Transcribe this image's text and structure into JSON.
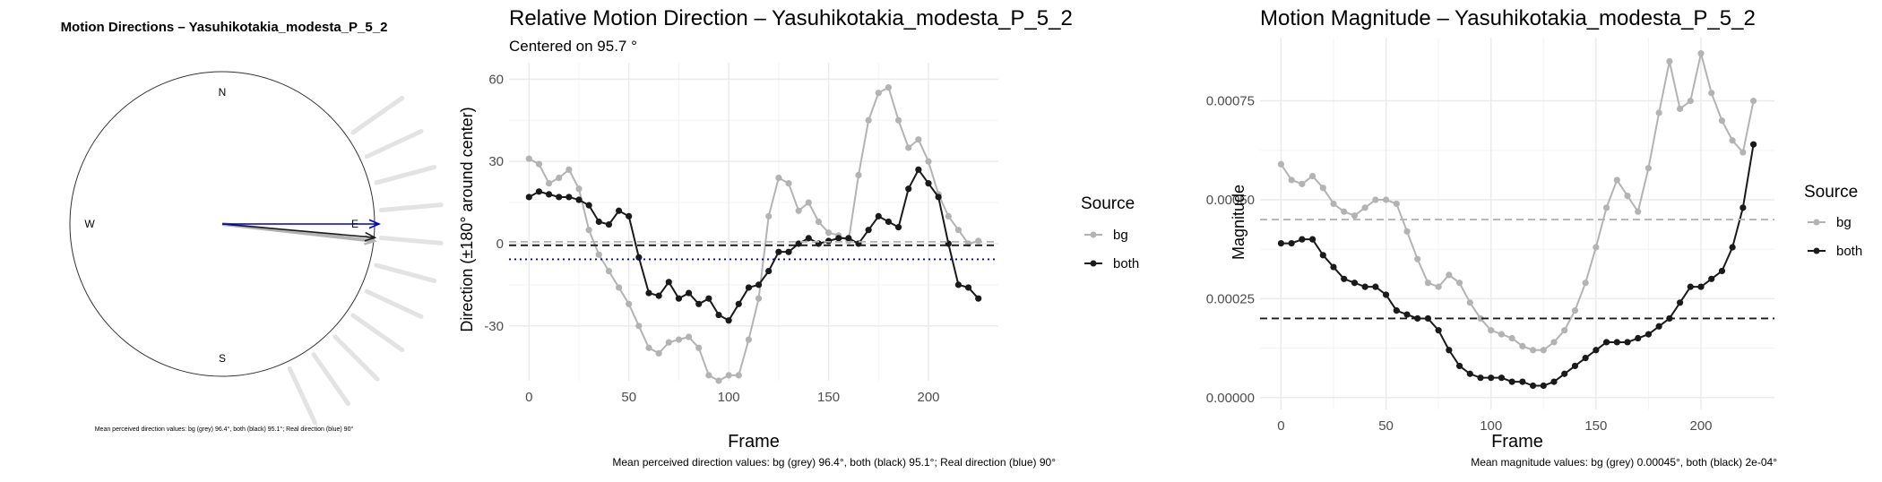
{
  "colors": {
    "bg": "#b3b3b3",
    "both": "#1a1a1a",
    "real": "#0000cc",
    "grid": "#ebebeb",
    "ray": "#e3e3e3"
  },
  "chart_data": [
    {
      "type": "polar-arrows",
      "title": "Motion Directions – Yasuhikotakia_modesta_P_5_2",
      "compass": [
        "N",
        "W",
        "E",
        "S"
      ],
      "arrows": [
        {
          "series": "bg",
          "direction_deg": 96.4,
          "color": "#b3b3b3"
        },
        {
          "series": "both",
          "direction_deg": 95.1,
          "color": "#1a1a1a"
        },
        {
          "series": "real",
          "direction_deg": 90,
          "color": "#0000cc"
        }
      ],
      "rays_deg": [
        55,
        65,
        75,
        85,
        95,
        105,
        115,
        125,
        135,
        145,
        155
      ],
      "caption": "Mean perceived direction values: bg (grey) 96.4°, both (black) 95.1°; Real direction (blue) 90°"
    },
    {
      "type": "line",
      "title": "Relative Motion Direction – Yasuhikotakia_modesta_P_5_2",
      "subtitle": "Centered on  95.7 °",
      "xlabel": "Frame",
      "ylabel": "Direction (±180° around center)",
      "xlim": [
        -10,
        235
      ],
      "ylim": [
        -50,
        66
      ],
      "xticks": [
        0,
        50,
        100,
        150,
        200
      ],
      "yticks": [
        -30,
        0,
        30,
        60
      ],
      "legend_title": "Source",
      "legend_position": "right",
      "hlines": [
        {
          "y": 0.7,
          "style": "dashed",
          "color": "#b3b3b3"
        },
        {
          "y": -0.6,
          "style": "dashed",
          "color": "#1a1a1a"
        },
        {
          "y": -5.7,
          "style": "dotted",
          "color": "#0000cc"
        }
      ],
      "series": [
        {
          "name": "bg",
          "x": [
            0,
            5,
            10,
            15,
            20,
            25,
            30,
            35,
            40,
            45,
            50,
            55,
            60,
            65,
            70,
            75,
            80,
            85,
            90,
            95,
            100,
            105,
            110,
            115,
            120,
            125,
            130,
            135,
            140,
            145,
            150,
            155,
            160,
            165,
            170,
            175,
            180,
            185,
            190,
            195,
            200,
            205,
            210,
            215,
            220,
            225
          ],
          "y": [
            31,
            29,
            22,
            24,
            27,
            20,
            5,
            -4,
            -10,
            -16,
            -22,
            -30,
            -38,
            -40,
            -36,
            -35,
            -34,
            -38,
            -48,
            -50,
            -48,
            -48,
            -35,
            -20,
            10,
            24,
            22,
            12,
            15,
            8,
            4,
            3,
            1,
            25,
            45,
            55,
            57,
            45,
            35,
            38,
            30,
            18,
            10,
            5,
            0,
            1
          ]
        },
        {
          "name": "both",
          "x": [
            0,
            5,
            10,
            15,
            20,
            25,
            30,
            35,
            40,
            45,
            50,
            55,
            60,
            65,
            70,
            75,
            80,
            85,
            90,
            95,
            100,
            105,
            110,
            115,
            120,
            125,
            130,
            135,
            140,
            145,
            150,
            155,
            160,
            165,
            170,
            175,
            180,
            185,
            190,
            195,
            200,
            205,
            210,
            215,
            220,
            225
          ],
          "y": [
            17,
            19,
            18,
            17,
            17,
            16,
            14,
            8,
            7,
            12,
            10,
            -5,
            -18,
            -19,
            -14,
            -20,
            -18,
            -22,
            -20,
            -26,
            -28,
            -22,
            -16,
            -15,
            -10,
            -3,
            -3,
            0,
            2,
            0,
            1,
            2,
            2,
            0,
            5,
            10,
            8,
            6,
            20,
            27,
            22,
            17,
            0,
            -15,
            -16,
            -20
          ]
        }
      ],
      "caption": "Mean perceived direction values: bg (grey) 96.4°, both (black) 95.1°; Real direction (blue) 90°"
    },
    {
      "type": "line",
      "title": "Motion Magnitude – Yasuhikotakia_modesta_P_5_2",
      "xlabel": "Frame",
      "ylabel": "Magnitude",
      "xlim": [
        -10,
        235
      ],
      "ylim": [
        -3e-05,
        0.00091
      ],
      "xticks": [
        0,
        50,
        100,
        150,
        200
      ],
      "yticks": [
        0.0,
        0.00025,
        0.0005,
        0.00075
      ],
      "ytick_labels": [
        "0.00000",
        "0.00025",
        "0.00050",
        "0.00075"
      ],
      "legend_title": "Source",
      "legend_position": "right",
      "hlines": [
        {
          "y": 0.00045,
          "style": "dashed",
          "color": "#b3b3b3"
        },
        {
          "y": 0.0002,
          "style": "dashed",
          "color": "#1a1a1a"
        }
      ],
      "series": [
        {
          "name": "bg",
          "x": [
            0,
            5,
            10,
            15,
            20,
            25,
            30,
            35,
            40,
            45,
            50,
            55,
            60,
            65,
            70,
            75,
            80,
            85,
            90,
            95,
            100,
            105,
            110,
            115,
            120,
            125,
            130,
            135,
            140,
            145,
            150,
            155,
            160,
            165,
            170,
            175,
            180,
            185,
            190,
            195,
            200,
            205,
            210,
            215,
            220,
            225
          ],
          "y": [
            0.00059,
            0.00055,
            0.00054,
            0.00056,
            0.00053,
            0.00049,
            0.00047,
            0.00046,
            0.00048,
            0.0005,
            0.0005,
            0.00049,
            0.00042,
            0.00035,
            0.00029,
            0.00028,
            0.00031,
            0.00029,
            0.00024,
            0.0002,
            0.00017,
            0.00016,
            0.00015,
            0.00013,
            0.00012,
            0.00012,
            0.00014,
            0.00017,
            0.00022,
            0.00029,
            0.00038,
            0.00048,
            0.00055,
            0.00051,
            0.00047,
            0.00058,
            0.00072,
            0.00085,
            0.00073,
            0.00075,
            0.00087,
            0.00077,
            0.0007,
            0.00065,
            0.00062,
            0.00075
          ]
        },
        {
          "name": "both",
          "x": [
            0,
            5,
            10,
            15,
            20,
            25,
            30,
            35,
            40,
            45,
            50,
            55,
            60,
            65,
            70,
            75,
            80,
            85,
            90,
            95,
            100,
            105,
            110,
            115,
            120,
            125,
            130,
            135,
            140,
            145,
            150,
            155,
            160,
            165,
            170,
            175,
            180,
            185,
            190,
            195,
            200,
            205,
            210,
            215,
            220,
            225
          ],
          "y": [
            0.00039,
            0.00039,
            0.0004,
            0.0004,
            0.00036,
            0.00033,
            0.0003,
            0.00029,
            0.00028,
            0.00028,
            0.00026,
            0.00022,
            0.00021,
            0.0002,
            0.0002,
            0.00017,
            0.00012,
            8e-05,
            6e-05,
            5e-05,
            5e-05,
            5e-05,
            4e-05,
            4e-05,
            3e-05,
            3e-05,
            4e-05,
            6e-05,
            8e-05,
            0.0001,
            0.00012,
            0.00014,
            0.00014,
            0.00014,
            0.00015,
            0.00016,
            0.00018,
            0.0002,
            0.00024,
            0.00028,
            0.00028,
            0.0003,
            0.00032,
            0.00038,
            0.00048,
            0.00064
          ]
        }
      ],
      "caption": "Mean magnitude values: bg (grey) 0.00045°, both (black) 2e-04°"
    }
  ]
}
